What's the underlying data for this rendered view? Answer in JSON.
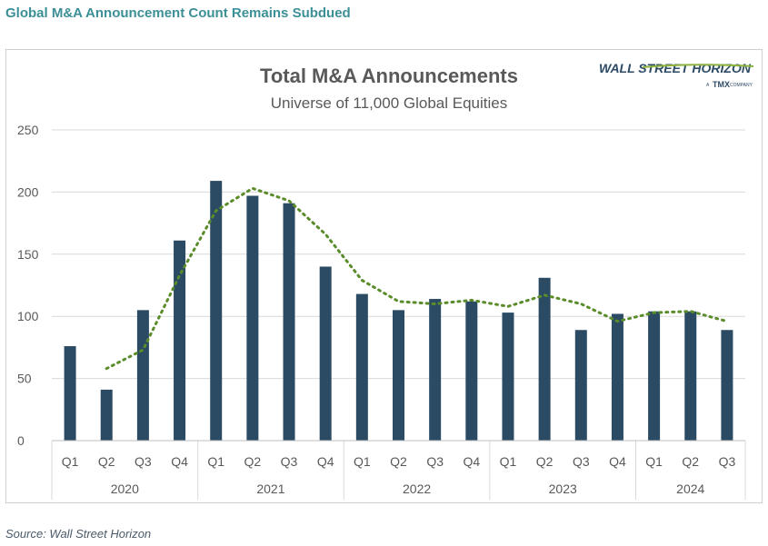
{
  "heading": "Global M&A Announcement Count Remains Subdued",
  "source": "Source: Wall Street Horizon",
  "logo": {
    "name": "WALL STREET HORIZON",
    "tagline_prefix": "A",
    "tagline_brand": "TMX",
    "tagline_suffix": "COMPANY"
  },
  "colors": {
    "bars": "#2b4a63",
    "trend": "#5b8c2a",
    "heading": "#3c8f96",
    "grid": "#d9d9d9",
    "text": "#595959"
  },
  "chart_data": {
    "type": "bar",
    "title": "Total M&A Announcements",
    "subtitle": "Universe of 11,000 Global Equities",
    "xlabel": "",
    "ylabel": "",
    "ylim": [
      0,
      250
    ],
    "yticks": [
      0,
      50,
      100,
      150,
      200,
      250
    ],
    "grid": true,
    "categories": [
      "Q1",
      "Q2",
      "Q3",
      "Q4",
      "Q1",
      "Q2",
      "Q3",
      "Q4",
      "Q1",
      "Q2",
      "Q3",
      "Q4",
      "Q1",
      "Q2",
      "Q3",
      "Q4",
      "Q1",
      "Q2",
      "Q3"
    ],
    "years": [
      {
        "label": "2020",
        "count": 4
      },
      {
        "label": "2021",
        "count": 4
      },
      {
        "label": "2022",
        "count": 4
      },
      {
        "label": "2023",
        "count": 4
      },
      {
        "label": "2024",
        "count": 3
      }
    ],
    "series": [
      {
        "type": "bar",
        "values": [
          76,
          41,
          105,
          161,
          209,
          197,
          191,
          140,
          118,
          105,
          114,
          112,
          103,
          131,
          89,
          102,
          104,
          104,
          89
        ]
      },
      {
        "type": "trend-dotted",
        "values": [
          null,
          58,
          73,
          133,
          185,
          203,
          193,
          166,
          129,
          112,
          110,
          113,
          108,
          117,
          110,
          96,
          103,
          104,
          96
        ]
      }
    ]
  }
}
